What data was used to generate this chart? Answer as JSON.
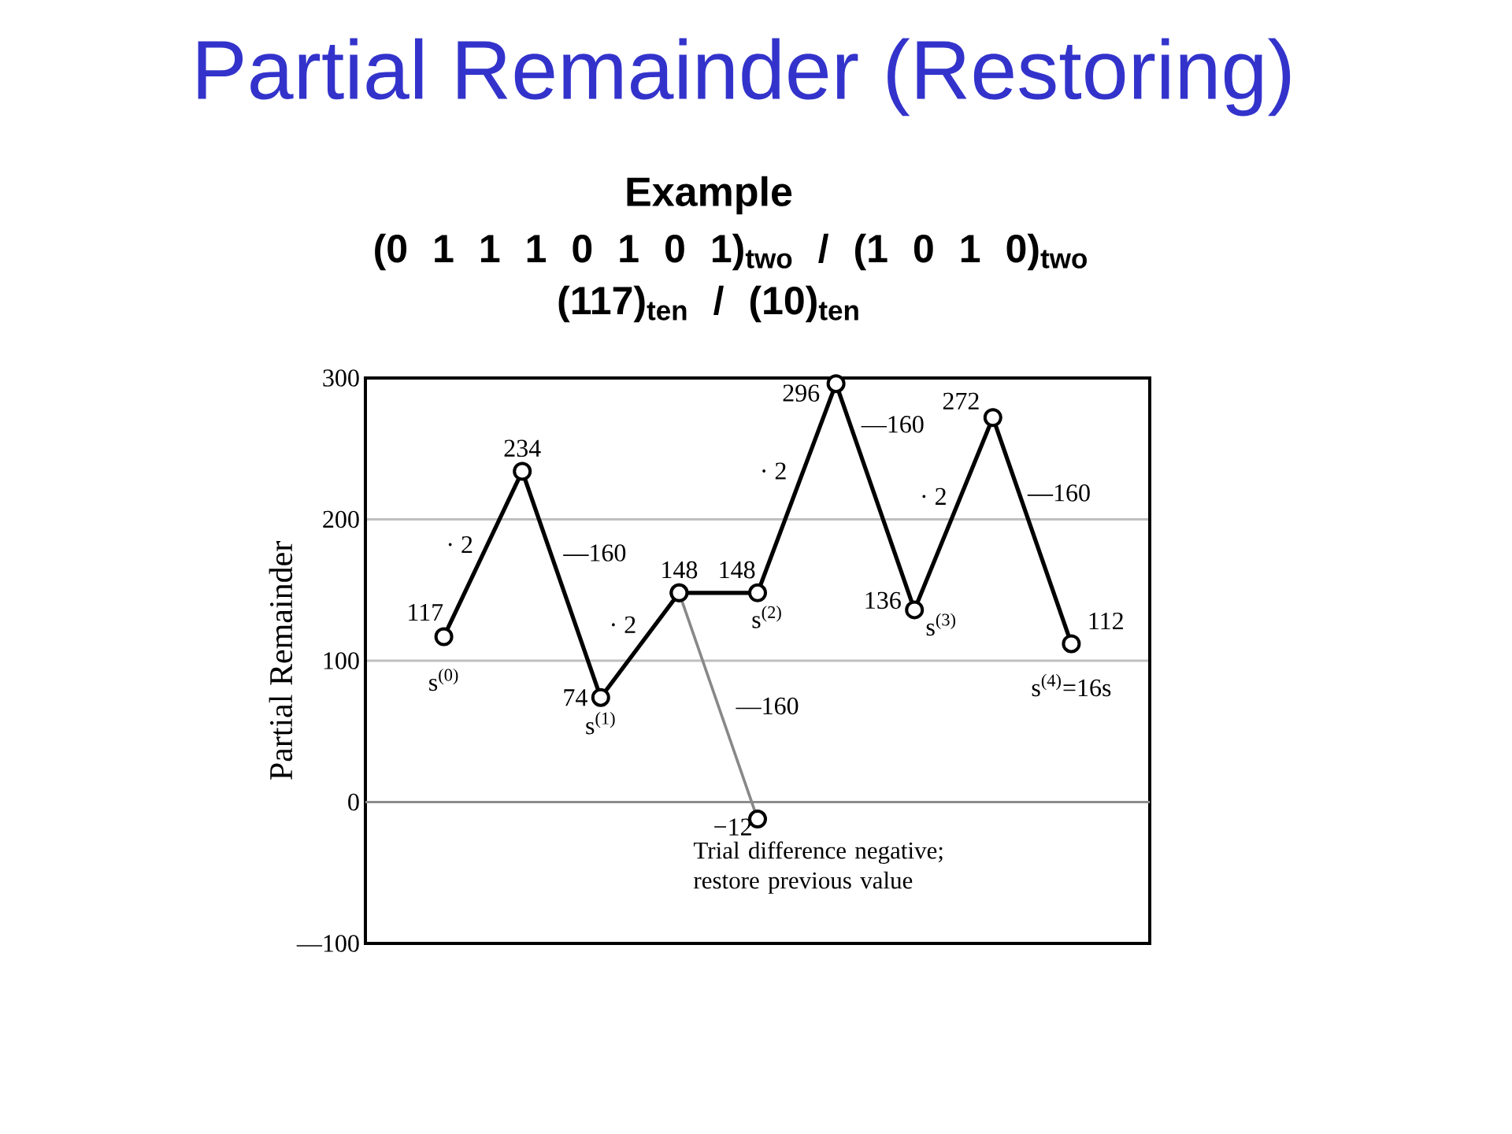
{
  "chart_data": {
    "type": "line",
    "title": "Partial Remainder (Restoring)",
    "subtitle": "Example",
    "ylabel": "Partial Remainder",
    "annotations": [
      "(0 1 1 1  0 1 0 1)$_{two}$ / (1 0 1 0)$_{two}$",
      "(117)$_{ten}$ / (10)$_{ten}$",
      "· 2",
      "—160",
      "· 2",
      "—160",
      "· 2",
      "—160",
      "· 2",
      "—160",
      "s$^{(0)}$",
      "s$^{(1)}$",
      "s$^{(2)}$",
      "s$^{(3)}$",
      "s$^{(4)}$=16s",
      "Trial difference negative; restore previous value"
    ],
    "categories": [
      null,
      null,
      null,
      null,
      null,
      null,
      null,
      null,
      null
    ],
    "series": [
      {
        "color": "#000000",
        "values": [
          117,
          234,
          74,
          148,
          148,
          296,
          136,
          272,
          112
        ],
        "value_labels": [
          "117",
          "234",
          "74",
          "148",
          "148",
          "296",
          "136",
          "272",
          "112"
        ]
      },
      {
        "color": "#888888",
        "values": [
          null,
          null,
          null,
          148,
          -12,
          null,
          null,
          null,
          null
        ],
        "value_labels": [
          null,
          null,
          null,
          null,
          "−12",
          null,
          null,
          null,
          null
        ]
      }
    ],
    "ylim": [
      -100,
      300
    ],
    "yticks": [
      {
        "value": -100,
        "label": "—100"
      },
      0,
      100,
      200,
      300
    ],
    "grid": "y",
    "marker": "circle",
    "line_style": "solid",
    "tick_labels": "y",
    "ref_lines": [
      {
        "axis": "y",
        "value": 0,
        "color": "#8c8c8c"
      }
    ]
  }
}
